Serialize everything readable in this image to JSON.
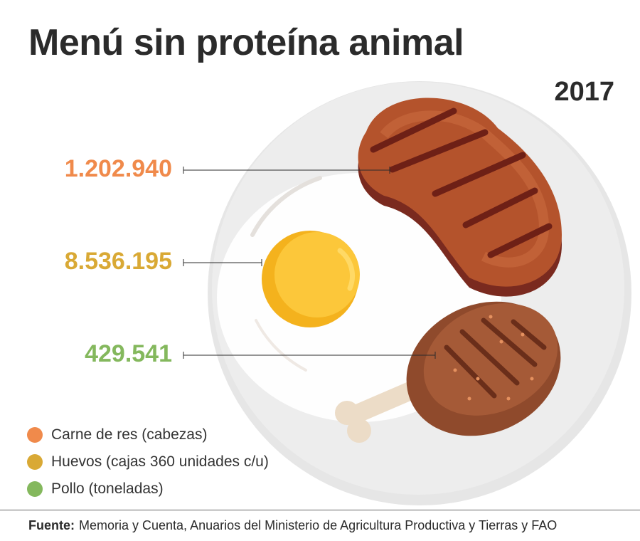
{
  "title": "Menú sin proteína animal",
  "year": "2017",
  "colors": {
    "beef": "#f08a4b",
    "eggs": "#d9a935",
    "chicken": "#84b85d"
  },
  "chart_data": {
    "type": "table",
    "title": "Menú sin proteína animal",
    "period": "2017",
    "categories": [
      "Carne de res (cabezas)",
      "Huevos (cajas 360 unidades c/u)",
      "Pollo (toneladas)"
    ],
    "values": [
      1202940,
      8536195,
      429541
    ],
    "value_labels": [
      "1.202.940",
      "8.536.195",
      "429.541"
    ],
    "icons": [
      "steak-icon",
      "egg-icon",
      "chicken-leg-icon"
    ]
  },
  "legend": [
    {
      "label": "Carne de res (cabezas)",
      "color": "#f08a4b"
    },
    {
      "label": "Huevos (cajas 360 unidades c/u)",
      "color": "#d9a935"
    },
    {
      "label": "Pollo (toneladas)",
      "color": "#84b85d"
    }
  ],
  "source": {
    "label": "Fuente:",
    "text": "Memoria y Cuenta, Anuarios del Ministerio de Agricultura Productiva y Tierras y FAO"
  }
}
